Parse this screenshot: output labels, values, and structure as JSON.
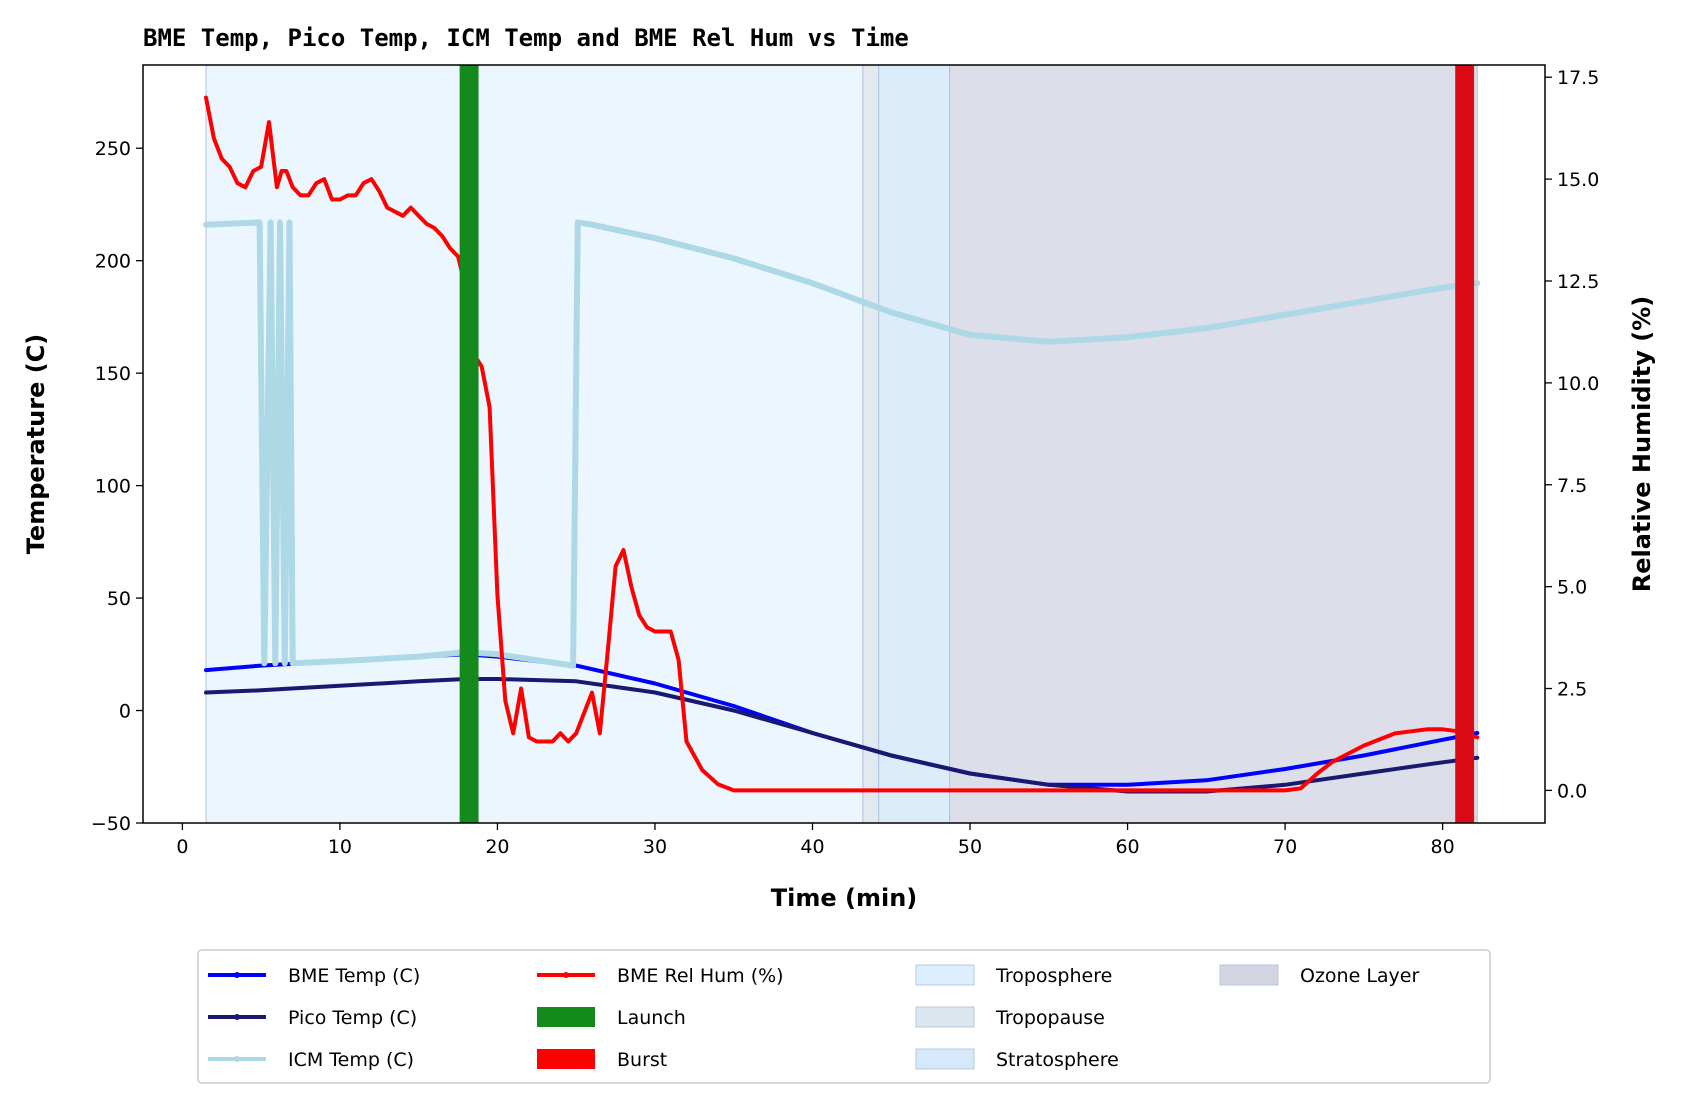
{
  "chart_data": {
    "type": "line",
    "title": "BME Temp, Pico Temp, ICM Temp and BME Rel Hum vs Time",
    "xlabel": "Time (min)",
    "ylabel": "Temperature (C)",
    "y2label": "Relative Humidity (%)",
    "xlim": [
      -2.5,
      86.5
    ],
    "ylim": [
      -50,
      287
    ],
    "y2lim": [
      -0.8,
      17.8
    ],
    "xticks": [
      0,
      10,
      20,
      30,
      40,
      50,
      60,
      70,
      80
    ],
    "yticks": [
      -50,
      0,
      50,
      100,
      150,
      200,
      250
    ],
    "y2ticks": [
      0.0,
      2.5,
      5.0,
      7.5,
      10.0,
      12.5,
      15.0,
      17.5
    ],
    "y2tick_labels": [
      "0.0",
      "2.5",
      "5.0",
      "7.5",
      "10.0",
      "12.5",
      "15.0",
      "17.5"
    ],
    "grid": false,
    "legend_position": "below",
    "regions": [
      {
        "name": "Troposphere",
        "x": [
          1.5,
          43.2
        ],
        "color": "#ddeeff",
        "opacity": 0.55
      },
      {
        "name": "Tropopause",
        "x": [
          43.2,
          44.2
        ],
        "color": "#cfdbe6",
        "opacity": 0.6
      },
      {
        "name": "Stratosphere",
        "x": [
          44.2,
          48.7
        ],
        "color": "#cce4fa",
        "opacity": 0.7
      },
      {
        "name": "Ozone Layer",
        "x": [
          48.7,
          82.2
        ],
        "color": "#c5c8da",
        "opacity": 0.6
      }
    ],
    "events": [
      {
        "name": "Launch",
        "x": 18.2,
        "width": 1.2,
        "color": "#138a1b"
      },
      {
        "name": "Burst",
        "x": 81.4,
        "width": 1.2,
        "color": "#dc0a14"
      }
    ],
    "series": [
      {
        "name": "BME Temp (C)",
        "axis": "left",
        "color": "#0000ff",
        "width": 4,
        "x": [
          1.5,
          5,
          10,
          15,
          18,
          20,
          25,
          30,
          35,
          40,
          45,
          50,
          55,
          60,
          65,
          70,
          75,
          80,
          82.2
        ],
        "y": [
          18,
          20,
          22,
          24,
          25,
          24,
          20,
          12,
          2,
          -10,
          -20,
          -28,
          -33,
          -33,
          -31,
          -26,
          -20,
          -13,
          -10
        ]
      },
      {
        "name": "Pico Temp (C)",
        "axis": "left",
        "color": "#191970",
        "width": 4,
        "x": [
          1.5,
          5,
          10,
          15,
          18,
          20,
          25,
          30,
          35,
          40,
          45,
          50,
          55,
          60,
          65,
          70,
          75,
          80,
          82.2
        ],
        "y": [
          8,
          9,
          11,
          13,
          14,
          14,
          13,
          8,
          0,
          -10,
          -20,
          -28,
          -33,
          -36,
          -36,
          -33,
          -28,
          -23,
          -21
        ]
      },
      {
        "name": "ICM Temp (C)",
        "axis": "left",
        "color": "#add8e6",
        "width": 6,
        "x": [
          1.5,
          4.9,
          5.2,
          5.6,
          5.9,
          6.2,
          6.5,
          6.8,
          7.0,
          10,
          15,
          18,
          20,
          24.8,
          25.1,
          26,
          30,
          35,
          40,
          45,
          50,
          55,
          60,
          65,
          70,
          75,
          80,
          82.2
        ],
        "y": [
          216,
          217,
          21,
          217,
          21,
          217,
          21,
          217,
          21,
          22,
          24,
          26,
          25,
          20,
          217,
          216,
          210,
          201,
          190,
          177,
          167,
          164,
          166,
          170,
          176,
          182,
          188,
          190
        ]
      },
      {
        "name": "BME Rel Hum (%)",
        "axis": "right",
        "color": "#ff0000",
        "width": 4,
        "x": [
          1.5,
          2,
          2.5,
          3,
          3.5,
          4,
          4.5,
          5,
          5.5,
          6,
          6.3,
          6.6,
          7,
          7.5,
          8,
          8.5,
          9,
          9.5,
          10,
          10.5,
          11,
          11.5,
          12,
          12.5,
          13,
          13.5,
          14,
          14.5,
          15,
          15.5,
          16,
          16.5,
          17,
          17.5,
          18,
          18.5,
          19,
          19.5,
          20,
          20.5,
          21,
          21.5,
          22,
          22.5,
          23,
          23.5,
          24,
          24.5,
          25,
          25.5,
          26,
          26.5,
          27,
          27.5,
          28,
          28.5,
          29,
          29.5,
          30,
          30.5,
          31,
          31.5,
          32,
          33,
          34,
          35,
          40,
          50,
          60,
          70,
          71,
          72,
          73,
          75,
          77,
          79,
          80,
          81,
          82.2
        ],
        "y": [
          17.0,
          16.0,
          15.5,
          15.3,
          14.9,
          14.8,
          15.2,
          15.3,
          16.4,
          14.8,
          15.2,
          15.2,
          14.8,
          14.6,
          14.6,
          14.9,
          15.0,
          14.5,
          14.5,
          14.6,
          14.6,
          14.9,
          15.0,
          14.7,
          14.3,
          14.2,
          14.1,
          14.3,
          14.1,
          13.9,
          13.8,
          13.6,
          13.3,
          13.1,
          12.3,
          10.7,
          10.4,
          9.4,
          4.8,
          2.2,
          1.4,
          2.5,
          1.3,
          1.2,
          1.2,
          1.2,
          1.4,
          1.2,
          1.4,
          1.9,
          2.4,
          1.4,
          3.4,
          5.5,
          5.9,
          5.0,
          4.3,
          4.0,
          3.9,
          3.9,
          3.9,
          3.2,
          1.2,
          0.5,
          0.15,
          0,
          0,
          0,
          0,
          0,
          0.05,
          0.4,
          0.7,
          1.1,
          1.4,
          1.5,
          1.5,
          1.45,
          1.3
        ]
      }
    ],
    "legend": [
      {
        "label": "BME Temp (C)",
        "kind": "line",
        "color": "#0000ff"
      },
      {
        "label": "Pico Temp (C)",
        "kind": "line",
        "color": "#191970"
      },
      {
        "label": "ICM Temp (C)",
        "kind": "line",
        "color": "#add8e6"
      },
      {
        "label": "BME Rel Hum (%)",
        "kind": "line",
        "color": "#ff0000"
      },
      {
        "label": "Launch",
        "kind": "patch",
        "color": "#138a1b"
      },
      {
        "label": "Burst",
        "kind": "patch",
        "color": "#ff0000"
      },
      {
        "label": "Troposphere",
        "kind": "patch",
        "color": "#ddeeff"
      },
      {
        "label": "Tropopause",
        "kind": "patch",
        "color": "#dbe6ef"
      },
      {
        "label": "Stratosphere",
        "kind": "patch",
        "color": "#d6e9fb"
      },
      {
        "label": "Ozone Layer",
        "kind": "patch",
        "color": "#d4d5e2"
      }
    ]
  }
}
